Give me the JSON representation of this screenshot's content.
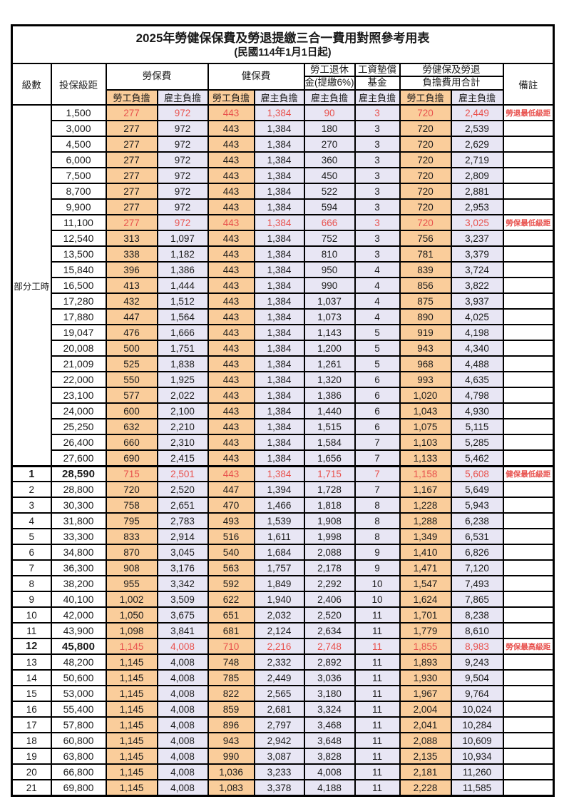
{
  "title": "2025年勞健保保費及勞退提繳三合一費用對照參考用表",
  "subtitle": "(民國114年1月1日起)",
  "colors": {
    "employee_column_bg": "#FACD9B",
    "employer_column_bg": "#E8E6F4",
    "highlight_red": "#E8514D",
    "border": "#000000"
  },
  "header": {
    "level": "級數",
    "bracket": "投保級距",
    "labor_insurance": "勞保費",
    "health_insurance": "健保費",
    "pension_line1": "勞工退休",
    "pension_line2": "金(提繳6%)",
    "wage_fund_line1": "工資墊償",
    "wage_fund_line2": "基金",
    "total_line1": "勞健保及勞退",
    "total_line2": "負擔費用合計",
    "employee_share": "勞工負擔",
    "employer_share": "雇主負擔",
    "remark": "備註"
  },
  "part_time_label": "部分工時",
  "part_time_rowspan": 23,
  "rows": [
    {
      "level": "",
      "bracket": "1,500",
      "li_emp": "277",
      "li_er": "972",
      "hi_emp": "443",
      "hi_er": "1,384",
      "pension": "90",
      "fund": "3",
      "tot_emp": "720",
      "tot_er": "2,449",
      "remark": "勞退最低級距",
      "red": true
    },
    {
      "level": "",
      "bracket": "3,000",
      "li_emp": "277",
      "li_er": "972",
      "hi_emp": "443",
      "hi_er": "1,384",
      "pension": "180",
      "fund": "3",
      "tot_emp": "720",
      "tot_er": "2,539",
      "remark": ""
    },
    {
      "level": "",
      "bracket": "4,500",
      "li_emp": "277",
      "li_er": "972",
      "hi_emp": "443",
      "hi_er": "1,384",
      "pension": "270",
      "fund": "3",
      "tot_emp": "720",
      "tot_er": "2,629",
      "remark": ""
    },
    {
      "level": "",
      "bracket": "6,000",
      "li_emp": "277",
      "li_er": "972",
      "hi_emp": "443",
      "hi_er": "1,384",
      "pension": "360",
      "fund": "3",
      "tot_emp": "720",
      "tot_er": "2,719",
      "remark": ""
    },
    {
      "level": "",
      "bracket": "7,500",
      "li_emp": "277",
      "li_er": "972",
      "hi_emp": "443",
      "hi_er": "1,384",
      "pension": "450",
      "fund": "3",
      "tot_emp": "720",
      "tot_er": "2,809",
      "remark": ""
    },
    {
      "level": "",
      "bracket": "8,700",
      "li_emp": "277",
      "li_er": "972",
      "hi_emp": "443",
      "hi_er": "1,384",
      "pension": "522",
      "fund": "3",
      "tot_emp": "720",
      "tot_er": "2,881",
      "remark": ""
    },
    {
      "level": "",
      "bracket": "9,900",
      "li_emp": "277",
      "li_er": "972",
      "hi_emp": "443",
      "hi_er": "1,384",
      "pension": "594",
      "fund": "3",
      "tot_emp": "720",
      "tot_er": "2,953",
      "remark": ""
    },
    {
      "level": "",
      "bracket": "11,100",
      "li_emp": "277",
      "li_er": "972",
      "hi_emp": "443",
      "hi_er": "1,384",
      "pension": "666",
      "fund": "3",
      "tot_emp": "720",
      "tot_er": "3,025",
      "remark": "勞保最低級距",
      "red": true
    },
    {
      "level": "",
      "bracket": "12,540",
      "li_emp": "313",
      "li_er": "1,097",
      "hi_emp": "443",
      "hi_er": "1,384",
      "pension": "752",
      "fund": "3",
      "tot_emp": "756",
      "tot_er": "3,237",
      "remark": ""
    },
    {
      "level": "",
      "bracket": "13,500",
      "li_emp": "338",
      "li_er": "1,182",
      "hi_emp": "443",
      "hi_er": "1,384",
      "pension": "810",
      "fund": "3",
      "tot_emp": "781",
      "tot_er": "3,379",
      "remark": ""
    },
    {
      "level": "",
      "bracket": "15,840",
      "li_emp": "396",
      "li_er": "1,386",
      "hi_emp": "443",
      "hi_er": "1,384",
      "pension": "950",
      "fund": "4",
      "tot_emp": "839",
      "tot_er": "3,724",
      "remark": ""
    },
    {
      "level": "",
      "bracket": "16,500",
      "li_emp": "413",
      "li_er": "1,444",
      "hi_emp": "443",
      "hi_er": "1,384",
      "pension": "990",
      "fund": "4",
      "tot_emp": "856",
      "tot_er": "3,822",
      "remark": ""
    },
    {
      "level": "",
      "bracket": "17,280",
      "li_emp": "432",
      "li_er": "1,512",
      "hi_emp": "443",
      "hi_er": "1,384",
      "pension": "1,037",
      "fund": "4",
      "tot_emp": "875",
      "tot_er": "3,937",
      "remark": ""
    },
    {
      "level": "",
      "bracket": "17,880",
      "li_emp": "447",
      "li_er": "1,564",
      "hi_emp": "443",
      "hi_er": "1,384",
      "pension": "1,073",
      "fund": "4",
      "tot_emp": "890",
      "tot_er": "4,025",
      "remark": ""
    },
    {
      "level": "",
      "bracket": "19,047",
      "li_emp": "476",
      "li_er": "1,666",
      "hi_emp": "443",
      "hi_er": "1,384",
      "pension": "1,143",
      "fund": "5",
      "tot_emp": "919",
      "tot_er": "4,198",
      "remark": ""
    },
    {
      "level": "",
      "bracket": "20,008",
      "li_emp": "500",
      "li_er": "1,751",
      "hi_emp": "443",
      "hi_er": "1,384",
      "pension": "1,200",
      "fund": "5",
      "tot_emp": "943",
      "tot_er": "4,340",
      "remark": ""
    },
    {
      "level": "",
      "bracket": "21,009",
      "li_emp": "525",
      "li_er": "1,838",
      "hi_emp": "443",
      "hi_er": "1,384",
      "pension": "1,261",
      "fund": "5",
      "tot_emp": "968",
      "tot_er": "4,488",
      "remark": ""
    },
    {
      "level": "",
      "bracket": "22,000",
      "li_emp": "550",
      "li_er": "1,925",
      "hi_emp": "443",
      "hi_er": "1,384",
      "pension": "1,320",
      "fund": "6",
      "tot_emp": "993",
      "tot_er": "4,635",
      "remark": ""
    },
    {
      "level": "",
      "bracket": "23,100",
      "li_emp": "577",
      "li_er": "2,022",
      "hi_emp": "443",
      "hi_er": "1,384",
      "pension": "1,386",
      "fund": "6",
      "tot_emp": "1,020",
      "tot_er": "4,798",
      "remark": ""
    },
    {
      "level": "",
      "bracket": "24,000",
      "li_emp": "600",
      "li_er": "2,100",
      "hi_emp": "443",
      "hi_er": "1,384",
      "pension": "1,440",
      "fund": "6",
      "tot_emp": "1,043",
      "tot_er": "4,930",
      "remark": ""
    },
    {
      "level": "",
      "bracket": "25,250",
      "li_emp": "632",
      "li_er": "2,210",
      "hi_emp": "443",
      "hi_er": "1,384",
      "pension": "1,515",
      "fund": "6",
      "tot_emp": "1,075",
      "tot_er": "5,115",
      "remark": ""
    },
    {
      "level": "",
      "bracket": "26,400",
      "li_emp": "660",
      "li_er": "2,310",
      "hi_emp": "443",
      "hi_er": "1,384",
      "pension": "1,584",
      "fund": "7",
      "tot_emp": "1,103",
      "tot_er": "5,285",
      "remark": ""
    },
    {
      "level": "",
      "bracket": "27,600",
      "li_emp": "690",
      "li_er": "2,415",
      "hi_emp": "443",
      "hi_er": "1,384",
      "pension": "1,656",
      "fund": "7",
      "tot_emp": "1,133",
      "tot_er": "5,462",
      "remark": ""
    },
    {
      "level": "1",
      "bracket": "28,590",
      "li_emp": "715",
      "li_er": "2,501",
      "hi_emp": "443",
      "hi_er": "1,384",
      "pension": "1,715",
      "fund": "7",
      "tot_emp": "1,158",
      "tot_er": "5,608",
      "remark": "健保最低級距",
      "red": true,
      "bold": true,
      "thick_top": true
    },
    {
      "level": "2",
      "bracket": "28,800",
      "li_emp": "720",
      "li_er": "2,520",
      "hi_emp": "447",
      "hi_er": "1,394",
      "pension": "1,728",
      "fund": "7",
      "tot_emp": "1,167",
      "tot_er": "5,649",
      "remark": ""
    },
    {
      "level": "3",
      "bracket": "30,300",
      "li_emp": "758",
      "li_er": "2,651",
      "hi_emp": "470",
      "hi_er": "1,466",
      "pension": "1,818",
      "fund": "8",
      "tot_emp": "1,228",
      "tot_er": "5,943",
      "remark": ""
    },
    {
      "level": "4",
      "bracket": "31,800",
      "li_emp": "795",
      "li_er": "2,783",
      "hi_emp": "493",
      "hi_er": "1,539",
      "pension": "1,908",
      "fund": "8",
      "tot_emp": "1,288",
      "tot_er": "6,238",
      "remark": ""
    },
    {
      "level": "5",
      "bracket": "33,300",
      "li_emp": "833",
      "li_er": "2,914",
      "hi_emp": "516",
      "hi_er": "1,611",
      "pension": "1,998",
      "fund": "8",
      "tot_emp": "1,349",
      "tot_er": "6,531",
      "remark": ""
    },
    {
      "level": "6",
      "bracket": "34,800",
      "li_emp": "870",
      "li_er": "3,045",
      "hi_emp": "540",
      "hi_er": "1,684",
      "pension": "2,088",
      "fund": "9",
      "tot_emp": "1,410",
      "tot_er": "6,826",
      "remark": ""
    },
    {
      "level": "7",
      "bracket": "36,300",
      "li_emp": "908",
      "li_er": "3,176",
      "hi_emp": "563",
      "hi_er": "1,757",
      "pension": "2,178",
      "fund": "9",
      "tot_emp": "1,471",
      "tot_er": "7,120",
      "remark": ""
    },
    {
      "level": "8",
      "bracket": "38,200",
      "li_emp": "955",
      "li_er": "3,342",
      "hi_emp": "592",
      "hi_er": "1,849",
      "pension": "2,292",
      "fund": "10",
      "tot_emp": "1,547",
      "tot_er": "7,493",
      "remark": ""
    },
    {
      "level": "9",
      "bracket": "40,100",
      "li_emp": "1,002",
      "li_er": "3,509",
      "hi_emp": "622",
      "hi_er": "1,940",
      "pension": "2,406",
      "fund": "10",
      "tot_emp": "1,624",
      "tot_er": "7,865",
      "remark": ""
    },
    {
      "level": "10",
      "bracket": "42,000",
      "li_emp": "1,050",
      "li_er": "3,675",
      "hi_emp": "651",
      "hi_er": "2,032",
      "pension": "2,520",
      "fund": "11",
      "tot_emp": "1,701",
      "tot_er": "8,238",
      "remark": ""
    },
    {
      "level": "11",
      "bracket": "43,900",
      "li_emp": "1,098",
      "li_er": "3,841",
      "hi_emp": "681",
      "hi_er": "2,124",
      "pension": "2,634",
      "fund": "11",
      "tot_emp": "1,779",
      "tot_er": "8,610",
      "remark": ""
    },
    {
      "level": "12",
      "bracket": "45,800",
      "li_emp": "1,145",
      "li_er": "4,008",
      "hi_emp": "710",
      "hi_er": "2,216",
      "pension": "2,748",
      "fund": "11",
      "tot_emp": "1,855",
      "tot_er": "8,983",
      "remark": "勞保最高級距",
      "red": true,
      "bold": true
    },
    {
      "level": "13",
      "bracket": "48,200",
      "li_emp": "1,145",
      "li_er": "4,008",
      "hi_emp": "748",
      "hi_er": "2,332",
      "pension": "2,892",
      "fund": "11",
      "tot_emp": "1,893",
      "tot_er": "9,243",
      "remark": ""
    },
    {
      "level": "14",
      "bracket": "50,600",
      "li_emp": "1,145",
      "li_er": "4,008",
      "hi_emp": "785",
      "hi_er": "2,449",
      "pension": "3,036",
      "fund": "11",
      "tot_emp": "1,930",
      "tot_er": "9,504",
      "remark": ""
    },
    {
      "level": "15",
      "bracket": "53,000",
      "li_emp": "1,145",
      "li_er": "4,008",
      "hi_emp": "822",
      "hi_er": "2,565",
      "pension": "3,180",
      "fund": "11",
      "tot_emp": "1,967",
      "tot_er": "9,764",
      "remark": ""
    },
    {
      "level": "16",
      "bracket": "55,400",
      "li_emp": "1,145",
      "li_er": "4,008",
      "hi_emp": "859",
      "hi_er": "2,681",
      "pension": "3,324",
      "fund": "11",
      "tot_emp": "2,004",
      "tot_er": "10,024",
      "remark": ""
    },
    {
      "level": "17",
      "bracket": "57,800",
      "li_emp": "1,145",
      "li_er": "4,008",
      "hi_emp": "896",
      "hi_er": "2,797",
      "pension": "3,468",
      "fund": "11",
      "tot_emp": "2,041",
      "tot_er": "10,284",
      "remark": ""
    },
    {
      "level": "18",
      "bracket": "60,800",
      "li_emp": "1,145",
      "li_er": "4,008",
      "hi_emp": "943",
      "hi_er": "2,942",
      "pension": "3,648",
      "fund": "11",
      "tot_emp": "2,088",
      "tot_er": "10,609",
      "remark": ""
    },
    {
      "level": "19",
      "bracket": "63,800",
      "li_emp": "1,145",
      "li_er": "4,008",
      "hi_emp": "990",
      "hi_er": "3,087",
      "pension": "3,828",
      "fund": "11",
      "tot_emp": "2,135",
      "tot_er": "10,934",
      "remark": ""
    },
    {
      "level": "20",
      "bracket": "66,800",
      "li_emp": "1,145",
      "li_er": "4,008",
      "hi_emp": "1,036",
      "hi_er": "3,233",
      "pension": "4,008",
      "fund": "11",
      "tot_emp": "2,181",
      "tot_er": "11,260",
      "remark": ""
    },
    {
      "level": "21",
      "bracket": "69,800",
      "li_emp": "1,145",
      "li_er": "4,008",
      "hi_emp": "1,083",
      "hi_er": "3,378",
      "pension": "4,188",
      "fund": "11",
      "tot_emp": "2,228",
      "tot_er": "11,585",
      "remark": ""
    }
  ]
}
